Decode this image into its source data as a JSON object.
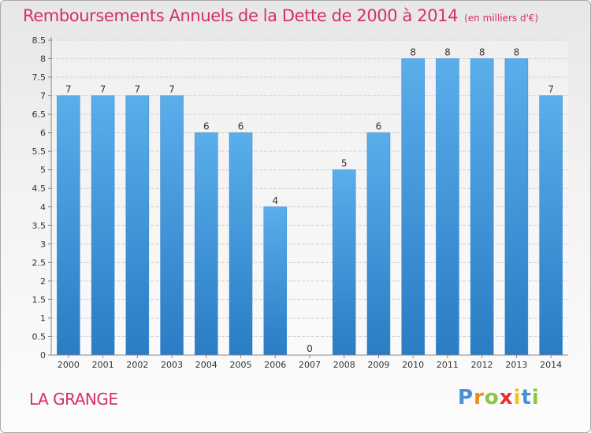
{
  "chart_data": {
    "type": "bar",
    "title": "Remboursements Annuels de la Dette de 2000 à 2014",
    "unit_note": "(en milliers d'€)",
    "categories": [
      "2000",
      "2001",
      "2002",
      "2003",
      "2004",
      "2005",
      "2006",
      "2007",
      "2008",
      "2009",
      "2010",
      "2011",
      "2012",
      "2013",
      "2014"
    ],
    "values": [
      7,
      7,
      7,
      7,
      6,
      6,
      4,
      0,
      5,
      6,
      8,
      8,
      8,
      8,
      7
    ],
    "ylim": [
      0,
      8.5
    ],
    "yticks": [
      "0",
      "0.5",
      "1",
      "1.5",
      "2",
      "2.5",
      "3",
      "3.5",
      "4",
      "4.5",
      "5",
      "5.5",
      "6",
      "6.5",
      "7",
      "7.5",
      "8",
      "8.5"
    ],
    "xlabel": "",
    "ylabel": "",
    "grid": true,
    "bar_color": "#3a8ed6",
    "title_color": "#d52f63"
  },
  "location": "LA GRANGE",
  "logo": {
    "letters": [
      "P",
      "r",
      "o",
      "x",
      "i",
      "t",
      "i"
    ],
    "colors": [
      "#4a8fd8",
      "#f08a1c",
      "#8cc63f",
      "#e8322f",
      "#f6c11a",
      "#4a8fd8",
      "#8cc63f"
    ]
  }
}
